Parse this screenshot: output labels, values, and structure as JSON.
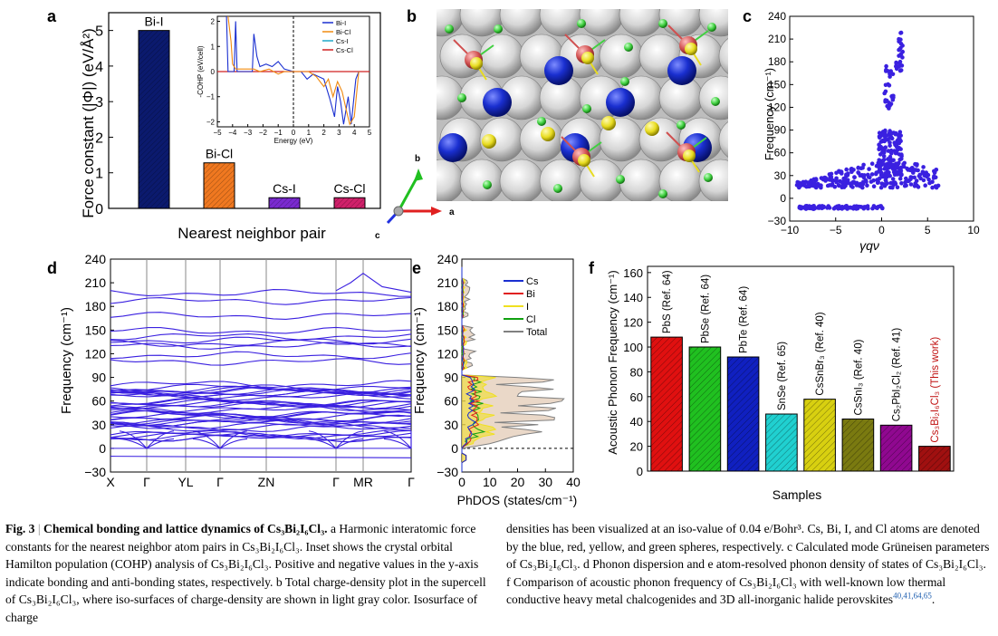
{
  "figure": {
    "panel_labels": [
      "a",
      "b",
      "c",
      "d",
      "e",
      "f"
    ],
    "caption": {
      "fig_no": "Fig. 3",
      "bold_title": "Chemical bonding and lattice dynamics of Cs₃Bi₂I₆Cl₃.",
      "left_text": " a Harmonic interatomic force constants for the nearest neighbor atom pairs in Cs₃Bi₂I₆Cl₃. Inset shows the crystal orbital Hamilton population (COHP) analysis of Cs₃Bi₂I₆Cl₃. Positive and negative values in the y-axis indicate bonding and anti-bonding states, respectively. b Total charge-density plot in the supercell of Cs₃Bi₂I₆Cl₃, where iso-surfaces of charge-density are shown in light gray color. Isosurface of charge",
      "right_text": "densities has been visualized at an iso-value of 0.04 e/Bohr³. Cs, Bi, I, and Cl atoms are denoted by the blue, red, yellow, and green spheres, respectively. c Calculated mode Grüneisen parameters of Cs₃Bi₂I₆Cl₃. d Phonon dispersion and e atom-resolved phonon density of states of Cs₃Bi₂I₆Cl₃. f Comparison of acoustic phonon frequency of Cs₃Bi₂I₆Cl₃ with well-known low thermal conductive heavy metal chalcogenides and 3D all-inorganic halide perovskites",
      "refs": "40,41,64,65"
    },
    "panel_b": {
      "axis_labels": [
        "b",
        "a",
        "c"
      ],
      "colors": {
        "Cs": "#1a2fd0",
        "Bi": "#d05050",
        "I": "#e8dc20",
        "Cl": "#40d040",
        "iso": "#c8c8c8"
      }
    }
  },
  "chart_data": [
    {
      "id": "a",
      "type": "bar",
      "categories": [
        "Bi-I",
        "Bi-Cl",
        "Cs-I",
        "Cs-Cl"
      ],
      "values": [
        5.0,
        1.28,
        0.3,
        0.3
      ],
      "colors": [
        "#0b1a6e",
        "#f07820",
        "#7a2ad0",
        "#d0206a"
      ],
      "ylabel": "Force constant (|Φ|) (eV/Å²)",
      "xlabel": "Nearest neighbor pair",
      "ylim": [
        0,
        5.5
      ],
      "yticks": [
        "0",
        "1",
        "2",
        "3",
        "4",
        "5"
      ],
      "inset": {
        "type": "line",
        "xlabel": "Energy (eV)",
        "ylabel": "-COHP (eV/cell)",
        "xlim": [
          -5,
          5
        ],
        "ylim": [
          -2.2,
          2.2
        ],
        "xticks": [
          "−5",
          "−4",
          "−3",
          "−2",
          "−1",
          "0",
          "1",
          "2",
          "3",
          "4",
          "5"
        ],
        "yticks": [
          "−2",
          "−1",
          "0",
          "1",
          "2"
        ],
        "legend": [
          {
            "name": "Bi-I",
            "color": "#1a2fd0"
          },
          {
            "name": "Bi-Cl",
            "color": "#f08a10"
          },
          {
            "name": "Cs-I",
            "color": "#20a8c8"
          },
          {
            "name": "Cs-Cl",
            "color": "#d02020"
          }
        ]
      }
    },
    {
      "id": "c",
      "type": "scatter",
      "xlabel": "γqν",
      "ylabel": "Frequency (cm⁻¹)",
      "xlim": [
        -10,
        10
      ],
      "ylim": [
        -30,
        240
      ],
      "xticks": [
        "−10",
        "−5",
        "0",
        "5",
        "10"
      ],
      "yticks": [
        "−30",
        "0",
        "30",
        "60",
        "90",
        "120",
        "150",
        "180",
        "210",
        "240"
      ],
      "color": "#3a20e0"
    },
    {
      "id": "d",
      "type": "line",
      "ylabel": "Frequency (cm⁻¹)",
      "ylim": [
        -30,
        240
      ],
      "yticks": [
        "−30",
        "0",
        "30",
        "60",
        "90",
        "120",
        "150",
        "180",
        "210",
        "240"
      ],
      "kpath": [
        "X",
        "Γ",
        "YL",
        "Γ",
        "ZN",
        "Γ",
        "MR",
        "Γ"
      ],
      "color": "#3a20e0"
    },
    {
      "id": "e",
      "type": "area",
      "xlabel": "PhDOS (states/cm⁻¹)",
      "ylabel": "Frequency (cm⁻¹)",
      "xlim": [
        0,
        40
      ],
      "ylim": [
        -30,
        240
      ],
      "xticks": [
        "0",
        "10",
        "20",
        "30",
        "40"
      ],
      "yticks": [
        "−30",
        "0",
        "30",
        "60",
        "90",
        "120",
        "150",
        "180",
        "210",
        "240"
      ],
      "legend": [
        {
          "name": "Cs",
          "color": "#1a2fd0"
        },
        {
          "name": "Bi",
          "color": "#e02020"
        },
        {
          "name": "I",
          "color": "#f0e020"
        },
        {
          "name": "Cl",
          "color": "#10a010"
        },
        {
          "name": "Total",
          "color": "#808080"
        }
      ]
    },
    {
      "id": "f",
      "type": "bar",
      "ylabel": "Acoustic Phonon Frequency (cm⁻¹)",
      "xlabel": "Samples",
      "ylim": [
        0,
        165
      ],
      "yticks": [
        "0",
        "20",
        "40",
        "60",
        "80",
        "100",
        "120",
        "140",
        "160"
      ],
      "categories": [
        "PbS (Ref. 64)",
        "PbSe (Ref. 64)",
        "PbTe (Ref. 64)",
        "SnSe (Ref. 65)",
        "CsSnBr₃ (Ref. 40)",
        "CsSnI₃ (Ref. 40)",
        "Cs₂PbI₂Cl₂ (Ref. 41)",
        "Cs₃Bi₂I₆Cl₃ (This work)"
      ],
      "values": [
        108,
        100,
        92,
        46,
        58,
        42,
        37,
        20
      ],
      "colors": [
        "#e01010",
        "#20c020",
        "#1020c0",
        "#20d0d0",
        "#d8d010",
        "#7a7a10",
        "#900890",
        "#a01010"
      ],
      "label_colors": [
        "#000",
        "#000",
        "#000",
        "#000",
        "#000",
        "#000",
        "#000",
        "#c01010"
      ]
    }
  ]
}
